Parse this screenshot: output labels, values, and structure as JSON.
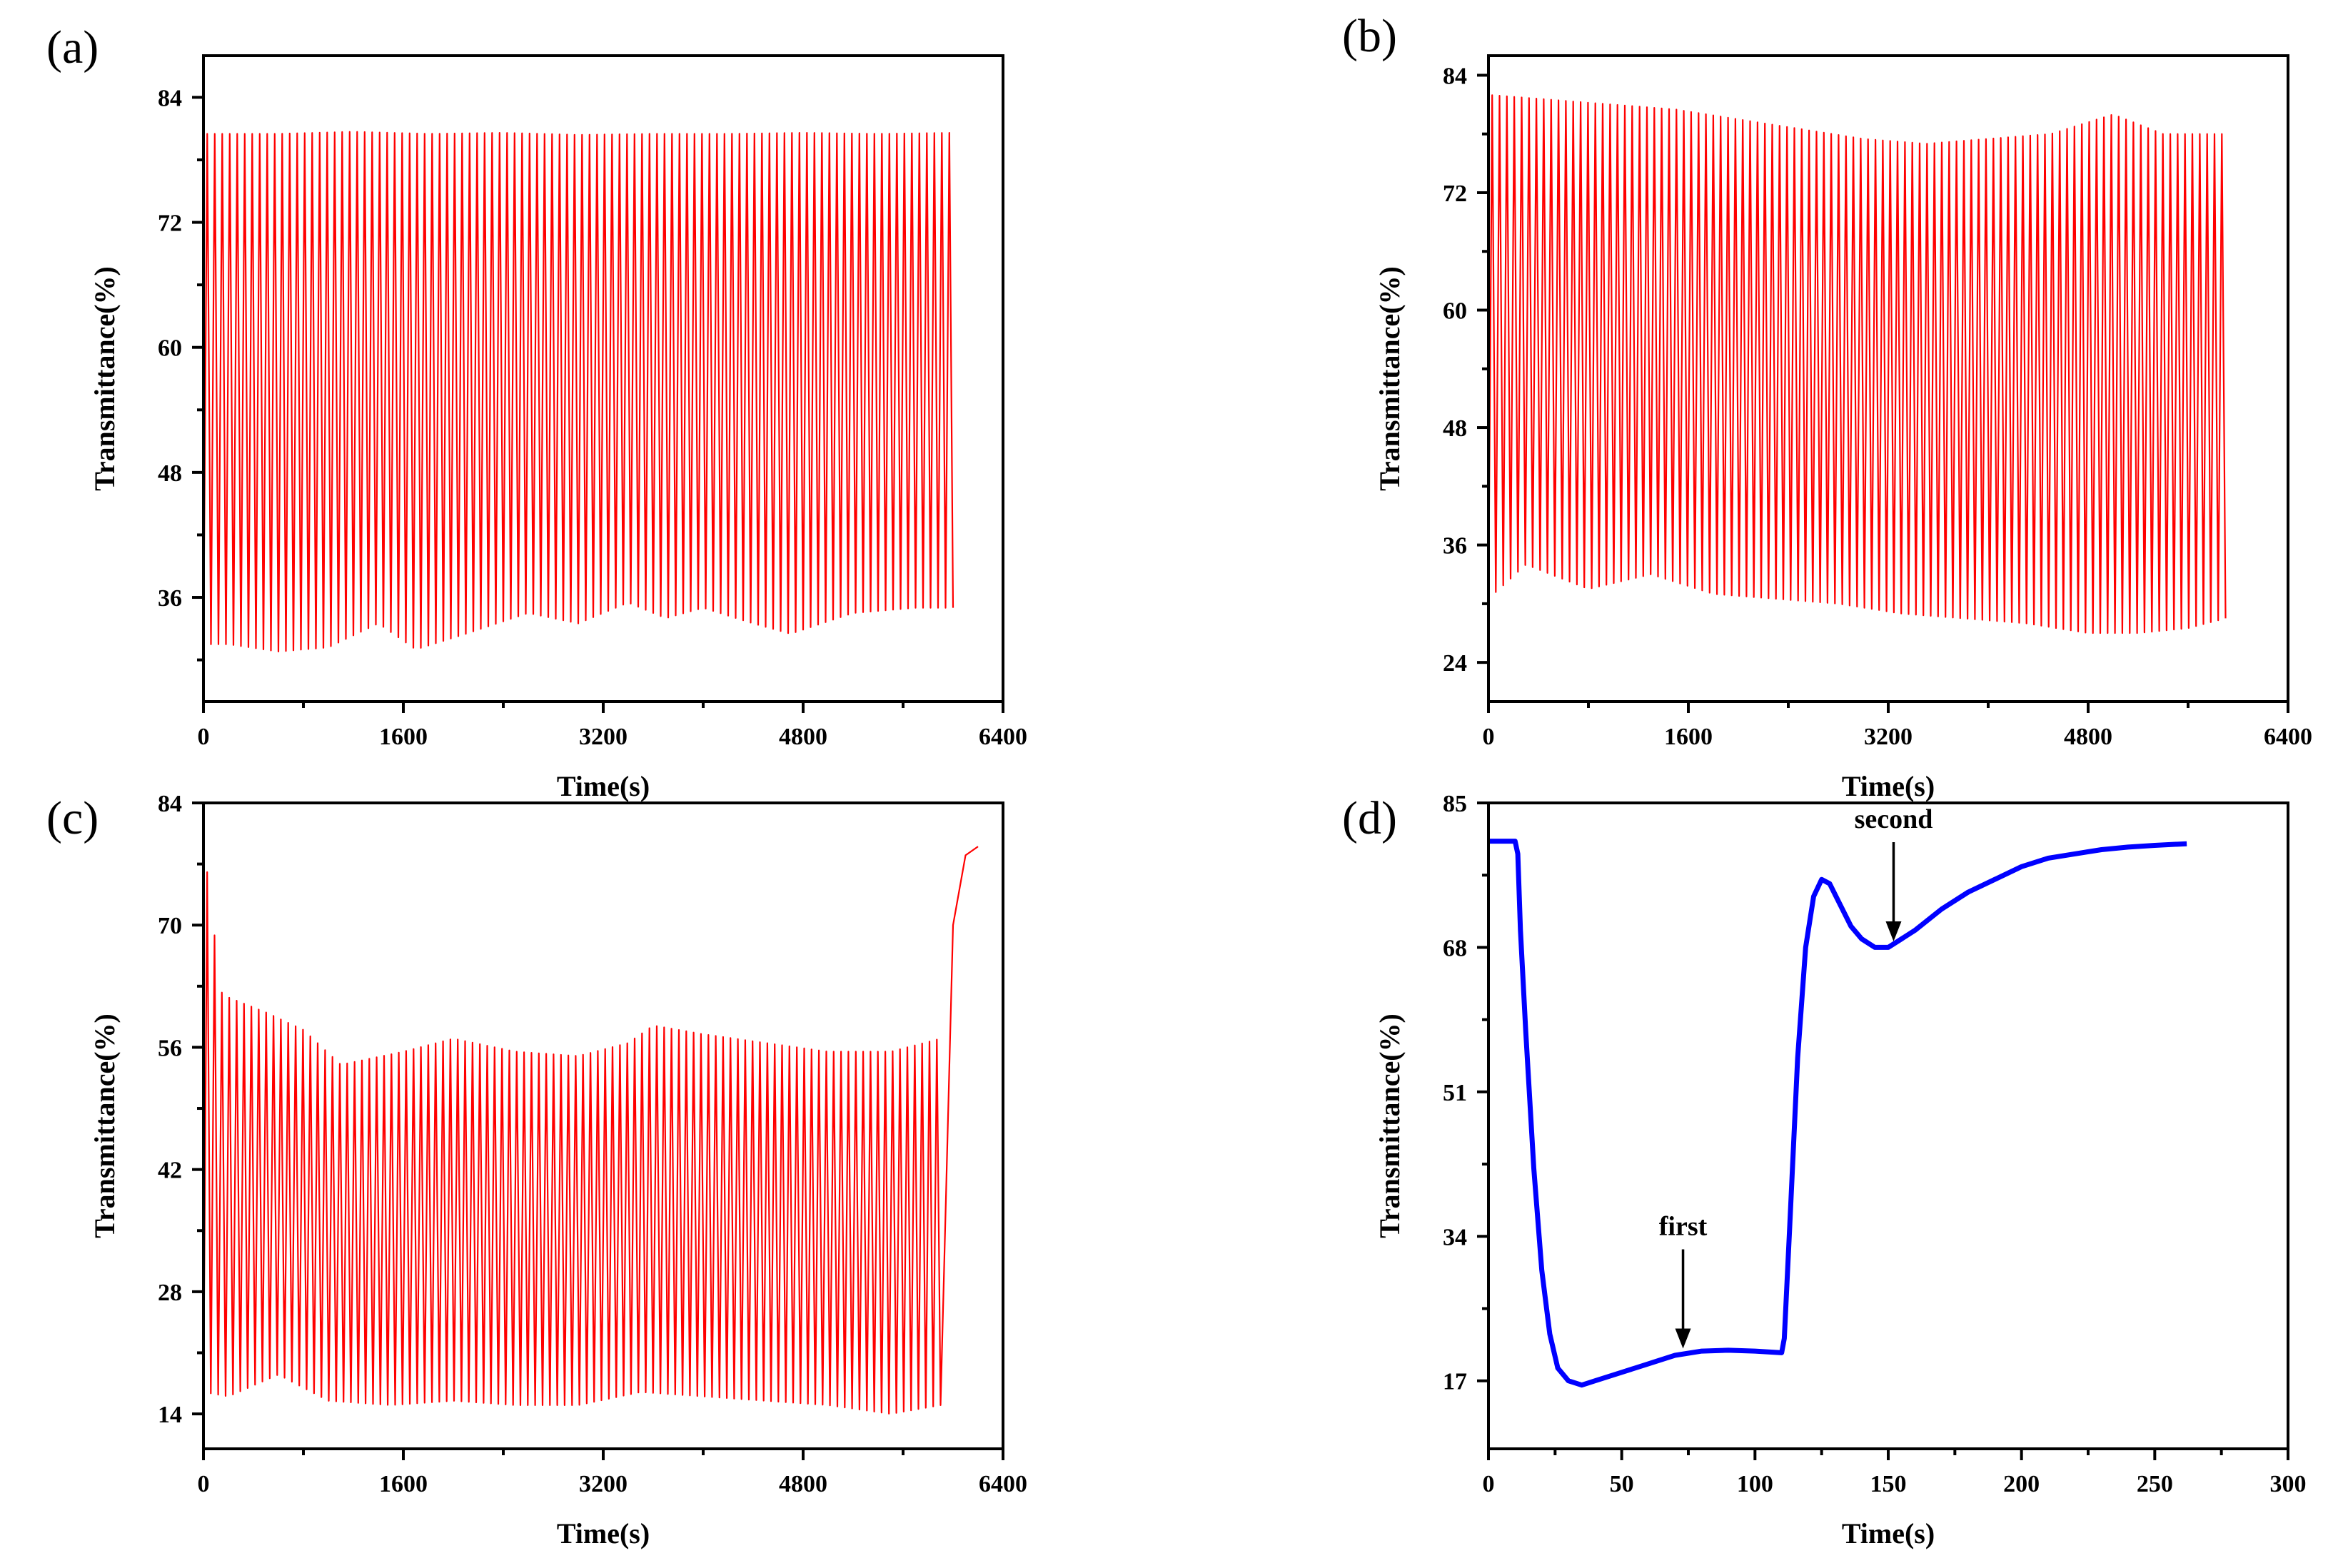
{
  "figure": {
    "panels": [
      "(a)",
      "(b)",
      "(c)",
      "(d)"
    ]
  },
  "chart_data": [
    {
      "panel": "(a)",
      "type": "line",
      "xlabel": "Time(s)",
      "ylabel": "Transmittance(%)",
      "xlim": [
        0,
        6400
      ],
      "ylim": [
        26,
        88
      ],
      "xticks": [
        0,
        1600,
        3200,
        4800,
        6400
      ],
      "yticks": [
        36,
        48,
        60,
        72,
        84
      ],
      "grid": false,
      "color": "#ff0000",
      "oscillation": {
        "t_start": 0,
        "t_end": 6000,
        "cycles": 100,
        "upper_envelope": {
          "t": [
            0,
            600,
            1200,
            1800,
            2400,
            3000,
            3600,
            4200,
            4800,
            5400,
            6000
          ],
          "value": [
            80.5,
            80.5,
            80.7,
            80.5,
            80.6,
            80.4,
            80.5,
            80.5,
            80.6,
            80.5,
            80.6
          ]
        },
        "lower_envelope": {
          "t": [
            0,
            200,
            600,
            1000,
            1400,
            1700,
            2100,
            2600,
            3000,
            3400,
            3700,
            4000,
            4400,
            4700,
            5200,
            5700,
            6000
          ],
          "value": [
            31.5,
            31.5,
            30.8,
            31.2,
            33.5,
            31.0,
            32.5,
            34.5,
            33.5,
            35.5,
            34.0,
            35.0,
            33.5,
            32.5,
            34.5,
            35.0,
            35.0
          ]
        }
      }
    },
    {
      "panel": "(b)",
      "type": "line",
      "xlabel": "Time(s)",
      "ylabel": "Transmittance(%)",
      "xlim": [
        0,
        6400
      ],
      "ylim": [
        20,
        86
      ],
      "xticks": [
        0,
        1600,
        3200,
        4800,
        6400
      ],
      "yticks": [
        24,
        36,
        48,
        60,
        72,
        84
      ],
      "grid": false,
      "color": "#ff0000",
      "oscillation": {
        "t_start": 0,
        "t_end": 5900,
        "cycles": 100,
        "upper_envelope": {
          "t": [
            0,
            500,
            1000,
            1500,
            2000,
            2500,
            3000,
            3500,
            4000,
            4500,
            5000,
            5400,
            5900
          ],
          "value": [
            82.0,
            81.5,
            81.0,
            80.5,
            79.5,
            78.5,
            77.5,
            77.0,
            77.5,
            78.0,
            80.0,
            78.0,
            78.0
          ]
        },
        "lower_envelope": {
          "t": [
            0,
            300,
            800,
            1300,
            1800,
            2300,
            2800,
            3300,
            3800,
            4300,
            4800,
            5200,
            5600,
            5900
          ],
          "value": [
            30.5,
            34.0,
            31.5,
            33.0,
            31.0,
            30.5,
            30.0,
            29.0,
            28.5,
            28.0,
            27.0,
            27.0,
            27.5,
            28.5
          ]
        }
      }
    },
    {
      "panel": "(c)",
      "type": "line",
      "xlabel": "Time(s)",
      "ylabel": "Transmittance(%)",
      "xlim": [
        0,
        6400
      ],
      "ylim": [
        10,
        84
      ],
      "xticks": [
        0,
        1600,
        3200,
        4800,
        6400
      ],
      "yticks": [
        14,
        28,
        42,
        56,
        70,
        84
      ],
      "grid": false,
      "color": "#ff0000",
      "oscillation": {
        "t_start": 0,
        "t_end": 5900,
        "cycles": 100,
        "upper_envelope": {
          "t": [
            0,
            60,
            150,
            500,
            800,
            1100,
            1600,
            2000,
            2500,
            3000,
            3400,
            3600,
            4000,
            4500,
            5000,
            5500,
            5900
          ],
          "value": [
            80.0,
            72.0,
            62.0,
            60.0,
            58.0,
            54.0,
            55.5,
            57.0,
            55.5,
            55.0,
            56.5,
            58.5,
            57.5,
            56.5,
            55.5,
            55.5,
            57.0
          ]
        },
        "lower_envelope": {
          "t": [
            0,
            200,
            600,
            1000,
            1500,
            2000,
            2500,
            3000,
            3500,
            4000,
            4500,
            5000,
            5500,
            5900
          ],
          "value": [
            16.5,
            16.0,
            18.5,
            15.5,
            15.0,
            15.5,
            15.0,
            15.0,
            16.5,
            16.0,
            15.5,
            15.0,
            14.0,
            15.0
          ]
        }
      },
      "final_rise": {
        "t": [
          5900,
          6000,
          6100,
          6200
        ],
        "value": [
          57.0,
          70.0,
          78.0,
          79.0
        ]
      }
    },
    {
      "panel": "(d)",
      "type": "line",
      "xlabel": "Time(s)",
      "ylabel": "Transmittance(%)",
      "xlim": [
        0,
        300
      ],
      "ylim": [
        9,
        85
      ],
      "xticks": [
        0,
        50,
        100,
        150,
        200,
        250,
        300
      ],
      "yticks": [
        17,
        34,
        51,
        68,
        85
      ],
      "grid": false,
      "color": "#0000ff",
      "series": [
        {
          "x": [
            0,
            10,
            11,
            12,
            14,
            17,
            20,
            23,
            26,
            30,
            35,
            40,
            50,
            60,
            70,
            80,
            90,
            100,
            110,
            111,
            113,
            116,
            119,
            122,
            125,
            128,
            132,
            136,
            140,
            145,
            150,
            155,
            160,
            170,
            180,
            190,
            200,
            210,
            220,
            230,
            240,
            250,
            262
          ],
          "y": [
            80.5,
            80.5,
            79.0,
            70.0,
            58.0,
            42.0,
            30.0,
            22.5,
            18.5,
            17.0,
            16.5,
            17.0,
            18.0,
            19.0,
            20.0,
            20.5,
            20.6,
            20.5,
            20.3,
            22.0,
            35.0,
            55.0,
            68.0,
            74.0,
            76.0,
            75.5,
            73.0,
            70.5,
            69.0,
            68.0,
            68.0,
            69.0,
            70.0,
            72.5,
            74.5,
            76.0,
            77.5,
            78.5,
            79.0,
            79.5,
            79.8,
            80.0,
            80.2
          ]
        }
      ],
      "annotations": [
        {
          "text": "first",
          "x": 73,
          "y": 20.3
        },
        {
          "text": "second",
          "x": 152,
          "y": 68.2
        }
      ]
    }
  ]
}
